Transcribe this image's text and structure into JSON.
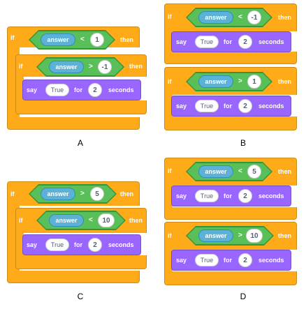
{
  "blocks": {
    "if_label": "if",
    "then_label": "then",
    "say_label": "say",
    "for_label": "for",
    "seconds_label": "seconds",
    "answer_label": "answer",
    "say_value": "True",
    "say_duration": "2"
  },
  "options": {
    "A": {
      "label": "A",
      "outer_op": "<",
      "outer_value": "1",
      "inner_op": ">",
      "inner_value": "-1"
    },
    "B": {
      "label": "B",
      "first_op": "<",
      "first_value": "-1",
      "second_op": ">",
      "second_value": "1"
    },
    "C": {
      "label": "C",
      "outer_op": ">",
      "outer_value": "5",
      "inner_op": "<",
      "inner_value": "10"
    },
    "D": {
      "label": "D",
      "first_op": "<",
      "first_value": "5",
      "second_op": ">",
      "second_value": "10"
    }
  },
  "colors": {
    "control": "#ffab19",
    "looks": "#9966ff",
    "operator": "#59c059",
    "sensing": "#5cb1d6"
  }
}
